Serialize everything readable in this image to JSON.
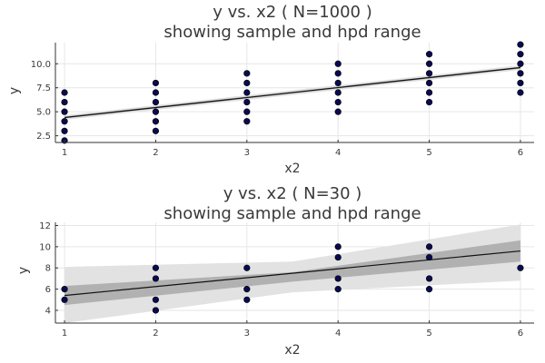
{
  "chart_data": [
    {
      "type": "scatter",
      "title_line1": "y vs. x2 ( N=1000 )",
      "title_line2": "showing sample and hpd range",
      "xlabel": "x2",
      "ylabel": "y",
      "xlim": [
        0.9,
        6.15
      ],
      "ylim": [
        1.8,
        12.2
      ],
      "xticks": [
        1,
        2,
        3,
        4,
        5,
        6
      ],
      "xtick_labels": [
        "1",
        "2",
        "3",
        "4",
        "5",
        "6"
      ],
      "yticks": [
        2.5,
        5.0,
        7.5,
        10.0
      ],
      "ytick_labels": [
        "2.5",
        "5.0",
        "7.5",
        "10.0"
      ],
      "grid": true,
      "points": [
        [
          1,
          2
        ],
        [
          1,
          3
        ],
        [
          1,
          4
        ],
        [
          1,
          5
        ],
        [
          1,
          6
        ],
        [
          1,
          7
        ],
        [
          2,
          3
        ],
        [
          2,
          4
        ],
        [
          2,
          5
        ],
        [
          2,
          6
        ],
        [
          2,
          7
        ],
        [
          2,
          8
        ],
        [
          3,
          4
        ],
        [
          3,
          5
        ],
        [
          3,
          6
        ],
        [
          3,
          7
        ],
        [
          3,
          8
        ],
        [
          3,
          9
        ],
        [
          4,
          5
        ],
        [
          4,
          6
        ],
        [
          4,
          7
        ],
        [
          4,
          8
        ],
        [
          4,
          9
        ],
        [
          4,
          10
        ],
        [
          5,
          6
        ],
        [
          5,
          7
        ],
        [
          5,
          8
        ],
        [
          5,
          9
        ],
        [
          5,
          10
        ],
        [
          5,
          11
        ],
        [
          6,
          7
        ],
        [
          6,
          8
        ],
        [
          6,
          9
        ],
        [
          6,
          10
        ],
        [
          6,
          11
        ],
        [
          6,
          12
        ]
      ],
      "line": {
        "x": [
          1,
          6
        ],
        "y": [
          4.4,
          9.6
        ]
      },
      "hpd_outer": {
        "x": [
          1,
          6
        ],
        "lower": [
          4.15,
          9.35
        ],
        "upper": [
          4.65,
          9.85
        ]
      },
      "hpd_inner": {
        "x": [
          1,
          6
        ],
        "lower": [
          4.3,
          9.5
        ],
        "upper": [
          4.5,
          9.7
        ]
      },
      "colors": {
        "points": "#0a0a50",
        "line": "#111111",
        "band_outer": "#e2e2e2",
        "band_inner": "#a8a8a8"
      }
    },
    {
      "type": "scatter",
      "title_line1": "y vs. x2 ( N=30 )",
      "title_line2": "showing sample and hpd range",
      "xlabel": "x2",
      "ylabel": "y",
      "xlim": [
        0.9,
        6.15
      ],
      "ylim": [
        2.8,
        12.3
      ],
      "xticks": [
        1,
        2,
        3,
        4,
        5,
        6
      ],
      "xtick_labels": [
        "1",
        "2",
        "3",
        "4",
        "5",
        "6"
      ],
      "yticks": [
        4,
        6,
        8,
        10,
        12
      ],
      "ytick_labels": [
        "4",
        "6",
        "8",
        "10",
        "12"
      ],
      "grid": true,
      "points": [
        [
          1,
          5
        ],
        [
          1,
          6
        ],
        [
          2,
          4
        ],
        [
          2,
          5
        ],
        [
          2,
          7
        ],
        [
          2,
          8
        ],
        [
          3,
          5
        ],
        [
          3,
          6
        ],
        [
          3,
          8
        ],
        [
          4,
          6
        ],
        [
          4,
          7
        ],
        [
          4,
          9
        ],
        [
          4,
          10
        ],
        [
          5,
          6
        ],
        [
          5,
          7
        ],
        [
          5,
          9
        ],
        [
          5,
          10
        ],
        [
          6,
          8
        ]
      ],
      "line": {
        "x": [
          1,
          6
        ],
        "y": [
          5.4,
          9.6
        ]
      },
      "hpd_outer": {
        "x": [
          1,
          3.5,
          6
        ],
        "lower": [
          2.8,
          5.7,
          6.8
        ],
        "upper": [
          8.1,
          8.6,
          12.1
        ]
      },
      "hpd_inner": {
        "x": [
          1,
          3.5,
          6
        ],
        "lower": [
          4.5,
          6.7,
          8.6
        ],
        "upper": [
          6.3,
          7.6,
          10.6
        ]
      },
      "colors": {
        "points": "#0a0a50",
        "line": "#111111",
        "band_outer": "#e2e2e2",
        "band_inner": "#a8a8a8"
      }
    }
  ]
}
